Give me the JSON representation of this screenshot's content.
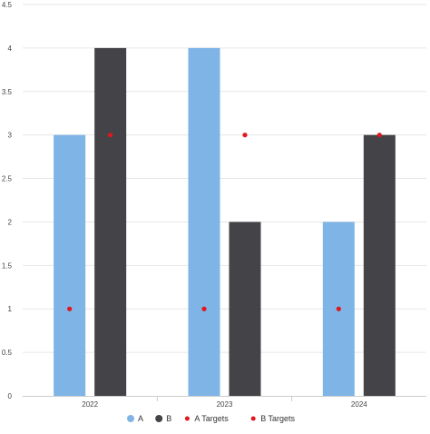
{
  "chart_data": {
    "type": "bar",
    "categories": [
      "2022",
      "2023",
      "2024"
    ],
    "series": [
      {
        "name": "A",
        "values": [
          3,
          4,
          2
        ],
        "color": "#7eb4e6"
      },
      {
        "name": "B",
        "values": [
          4,
          2,
          3
        ],
        "color": "#434348"
      }
    ],
    "targets": [
      {
        "name": "A Targets",
        "values": [
          1,
          1,
          1
        ],
        "color": "#e0171d"
      },
      {
        "name": "B Targets",
        "values": [
          3,
          3,
          3
        ],
        "color": "#e0171d"
      }
    ],
    "ylim": [
      0,
      4.5
    ],
    "yticks": [
      "0",
      "0.5",
      "1",
      "1.5",
      "2",
      "2.5",
      "3",
      "3.5",
      "4",
      "4.5"
    ],
    "grid": true,
    "legend_position": "bottom-center"
  }
}
